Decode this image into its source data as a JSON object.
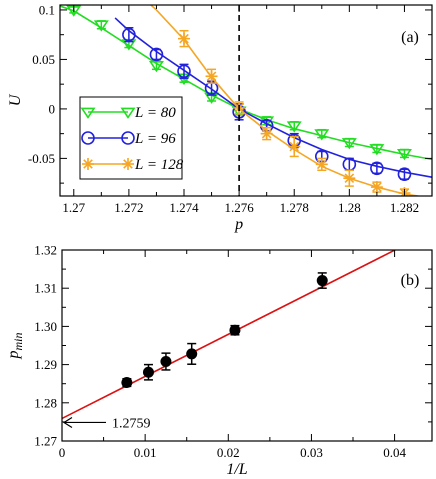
{
  "chart_data": [
    {
      "type": "line",
      "panel_label": "(a)",
      "xlabel": "p",
      "ylabel": "U",
      "xlim": [
        1.2695,
        1.283
      ],
      "ylim": [
        -0.088,
        0.105
      ],
      "xticks": [
        "1.27",
        "1.272",
        "1.274",
        "1.276",
        "1.278",
        "1.28",
        "1.282"
      ],
      "xtick_values": [
        1.27,
        1.272,
        1.274,
        1.276,
        1.278,
        1.28,
        1.282
      ],
      "yticks": [
        "0.1",
        "0.05",
        "0",
        "-0.05"
      ],
      "ytick_values": [
        0.1,
        0.05,
        0,
        -0.05
      ],
      "vline_x": 1.276,
      "legend_position": "lower-left",
      "series": [
        {
          "name": "L = 80",
          "color": "#22dd22",
          "marker": "triangle-down",
          "line_x": [
            1.2695,
            1.27,
            1.271,
            1.272,
            1.273,
            1.274,
            1.275,
            1.276,
            1.277,
            1.278,
            1.279,
            1.28,
            1.281,
            1.282,
            1.283
          ],
          "line_y": [
            0.104,
            0.099,
            0.082,
            0.064,
            0.046,
            0.03,
            0.014,
            0.0,
            -0.011,
            -0.02,
            -0.027,
            -0.034,
            -0.04,
            -0.046,
            -0.051
          ],
          "points_x": [
            1.27,
            1.271,
            1.272,
            1.273,
            1.274,
            1.275,
            1.276,
            1.277,
            1.278,
            1.279,
            1.28,
            1.281,
            1.282
          ],
          "points_y": [
            0.1,
            0.085,
            0.066,
            0.044,
            0.031,
            0.012,
            -0.002,
            -0.012,
            -0.017,
            -0.025,
            -0.034,
            -0.04,
            -0.045
          ],
          "errors": [
            0.003,
            0.004,
            0.004,
            0.004,
            0.004,
            0.004,
            0.004,
            0.004,
            0.004,
            0.004,
            0.004,
            0.004,
            0.004
          ]
        },
        {
          "name": "L = 96",
          "color": "#2222dd",
          "marker": "circle",
          "line_x": [
            1.2715,
            1.272,
            1.273,
            1.274,
            1.275,
            1.276,
            1.277,
            1.278,
            1.279,
            1.28,
            1.281,
            1.282,
            1.283
          ],
          "line_y": [
            0.092,
            0.079,
            0.058,
            0.039,
            0.02,
            0.0,
            -0.015,
            -0.029,
            -0.041,
            -0.051,
            -0.058,
            -0.064,
            -0.069
          ],
          "points_x": [
            1.272,
            1.273,
            1.274,
            1.275,
            1.276,
            1.277,
            1.278,
            1.279,
            1.28,
            1.281,
            1.282
          ],
          "points_y": [
            0.075,
            0.055,
            0.038,
            0.021,
            -0.003,
            -0.017,
            -0.032,
            -0.048,
            -0.056,
            -0.06,
            -0.066
          ],
          "errors": [
            0.007,
            0.005,
            0.007,
            0.007,
            0.008,
            0.005,
            0.007,
            0.005,
            0.006,
            0.005,
            0.005
          ]
        },
        {
          "name": "L = 128",
          "color": "#f5a623",
          "marker": "asterisk",
          "line_x": [
            1.2728,
            1.273,
            1.274,
            1.275,
            1.276,
            1.277,
            1.278,
            1.279,
            1.28,
            1.281,
            1.282,
            1.2825
          ],
          "line_y": [
            0.105,
            0.1,
            0.07,
            0.032,
            0.0,
            -0.022,
            -0.041,
            -0.058,
            -0.07,
            -0.079,
            -0.086,
            -0.088
          ],
          "points_x": [
            1.274,
            1.275,
            1.276,
            1.277,
            1.278,
            1.279,
            1.28,
            1.281,
            1.282
          ],
          "points_y": [
            0.071,
            0.033,
            0.001,
            -0.025,
            -0.038,
            -0.056,
            -0.07,
            -0.079,
            -0.085
          ],
          "errors": [
            0.008,
            0.007,
            0.006,
            0.006,
            0.01,
            0.006,
            0.008,
            0.005,
            0.004
          ]
        }
      ]
    },
    {
      "type": "scatter",
      "panel_label": "(b)",
      "xlabel": "1/L",
      "ylabel": "p",
      "ylabel_sub": "min",
      "xlim": [
        0,
        0.0445
      ],
      "ylim": [
        1.27,
        1.32
      ],
      "xticks": [
        "0",
        "0.01",
        "0.02",
        "0.03",
        "0.04"
      ],
      "xtick_values": [
        0,
        0.01,
        0.02,
        0.03,
        0.04
      ],
      "yticks": [
        "1.27",
        "1.28",
        "1.29",
        "1.30",
        "1.31",
        "1.32"
      ],
      "ytick_values": [
        1.27,
        1.28,
        1.29,
        1.3,
        1.31,
        1.32
      ],
      "annotation": "1.2759",
      "annotation_y": 1.2759,
      "fit": {
        "color": "#dd1111",
        "x": [
          0,
          0.0405
        ],
        "y": [
          1.2759,
          1.3205
        ]
      },
      "points": {
        "color": "#000000",
        "x": [
          0.0078,
          0.0104,
          0.0125,
          0.0156,
          0.0208,
          0.0313
        ],
        "y": [
          1.2853,
          1.288,
          1.2908,
          1.2928,
          1.299,
          1.312
        ],
        "errors": [
          0.001,
          0.002,
          0.0022,
          0.0027,
          0.0012,
          0.002
        ]
      }
    }
  ]
}
